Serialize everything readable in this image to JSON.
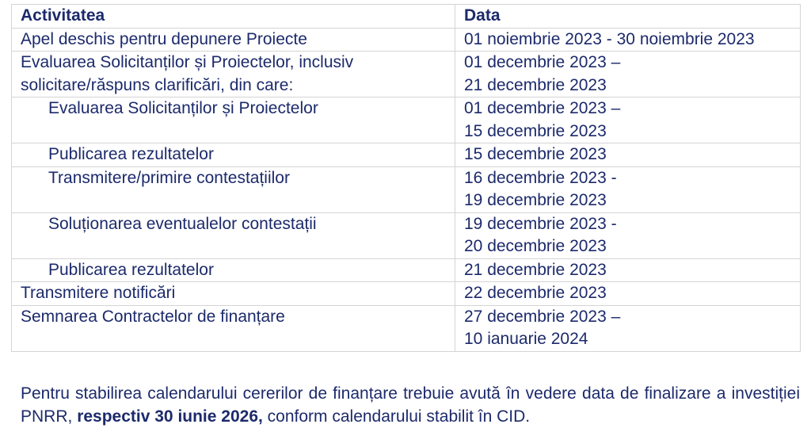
{
  "table": {
    "headers": [
      "Activitatea",
      "Data"
    ],
    "rows": [
      {
        "activity": "Apel deschis pentru depunere Proiecte",
        "date": "01 noiembrie 2023 - 30 noiembrie 2023",
        "indent": false
      },
      {
        "activity": "Evaluarea Solicitanților și Proiectelor, inclusiv solicitare/răspuns clarificări, din care:",
        "date": "01 decembrie 2023 – 21 decembrie 2023",
        "indent": false
      },
      {
        "activity": "Evaluarea Solicitanților și Proiectelor",
        "date": "01 decembrie 2023 – 15 decembrie 2023",
        "indent": true
      },
      {
        "activity": "Publicarea rezultatelor",
        "date": "15 decembrie 2023",
        "indent": true
      },
      {
        "activity": "Transmitere/primire contestațiilor",
        "date": "16 decembrie 2023 - 19 decembrie 2023",
        "indent": true
      },
      {
        "activity": "Soluționarea eventualelor contestații",
        "date": "19 decembrie 2023 - 20 decembrie 2023",
        "indent": true
      },
      {
        "activity": "Publicarea rezultatelor",
        "date": "21 decembrie 2023",
        "indent": true
      },
      {
        "activity": "Transmitere notificări",
        "date": "22 decembrie 2023",
        "indent": false
      },
      {
        "activity": "Semnarea Contractelor de finanțare",
        "date": "27 decembrie 2023 – 10 ianuarie 2024",
        "indent": false
      }
    ]
  },
  "paragraph": {
    "before": "Pentru stabilirea calendarului cererilor de finanțare trebuie avută în vedere data de finalizare a investiției PNRR, ",
    "bold": "respectiv 30 iunie 2026,",
    "after": " conform calendarului stabilit în CID."
  },
  "colors": {
    "text": "#1c2a6b",
    "border": "#d4d4d4"
  }
}
